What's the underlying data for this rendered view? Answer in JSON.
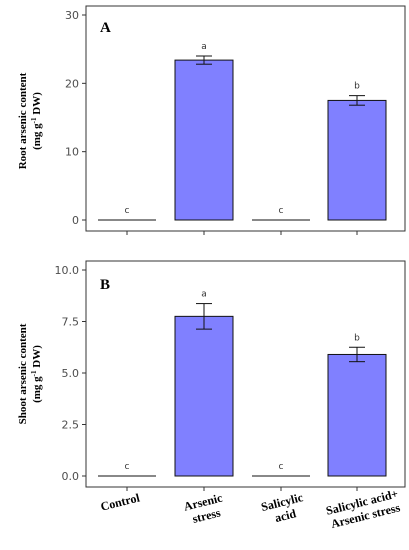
{
  "chart_data": [
    {
      "type": "bar",
      "panel_label": "A",
      "categories": [
        "Control",
        "Arsenic stress",
        "Salicylic acid",
        "Salicylic acid+ Arsenic stress"
      ],
      "values": [
        0,
        23.4,
        0,
        17.5
      ],
      "error": [
        0,
        0.6,
        0,
        0.7
      ],
      "significance": [
        "c",
        "a",
        "c",
        "b"
      ],
      "ylabel_line1": "Root arsenic content",
      "ylabel_line2": "(mg g",
      "ylabel_sup": "-1",
      "ylabel_line2_end": " DW)",
      "yticks": [
        "0",
        "10",
        "20",
        "30"
      ],
      "ylim": [
        0,
        30
      ],
      "bar_color": "#8080ff",
      "grid": false
    },
    {
      "type": "bar",
      "panel_label": "B",
      "categories": [
        "Control",
        "Arsenic stress",
        "Salicylic acid",
        "Salicylic acid+ Arsenic stress"
      ],
      "values": [
        0,
        7.75,
        0,
        5.9
      ],
      "error": [
        0,
        0.62,
        0,
        0.35
      ],
      "significance": [
        "c",
        "a",
        "c",
        "b"
      ],
      "ylabel_line1": "Shoot arsenic content",
      "ylabel_line2": "(mg g",
      "ylabel_sup": "-1",
      "ylabel_line2_end": " DW)",
      "yticks": [
        "0.0",
        "2.5",
        "5.0",
        "7.5",
        "10.0"
      ],
      "ylim": [
        0,
        10
      ],
      "bar_color": "#8080ff",
      "grid": false
    }
  ],
  "x_labels": [
    {
      "line1": "Control",
      "line2": ""
    },
    {
      "line1": "Arsenic",
      "line2": "stress"
    },
    {
      "line1": "Salicylic",
      "line2": "acid"
    },
    {
      "line1": "Salicylic acid+",
      "line2": "Arsenic stress"
    }
  ]
}
